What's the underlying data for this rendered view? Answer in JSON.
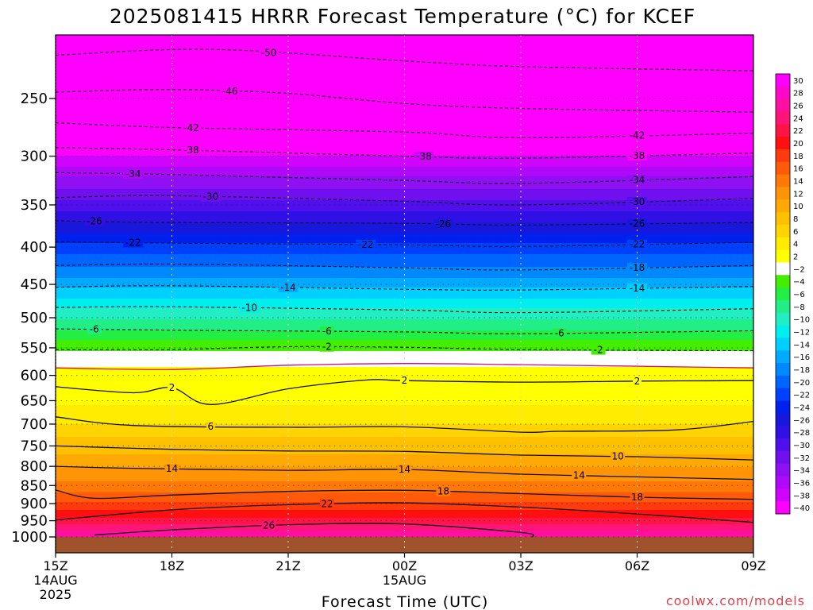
{
  "title": "2025081415 HRRR Forecast Temperature (°C) for KCEF",
  "credit": "coolwx.com/models",
  "chart_data": {
    "type": "heatmap",
    "title": "2025081415 HRRR Forecast Temperature (°C) for KCEF",
    "xlabel": "Forecast Time (UTC)",
    "ylabel": "",
    "y_scale": "log-pressure (inverted)",
    "ylim": [
      1000,
      200
    ],
    "xlim": [
      15,
      33
    ],
    "x_ticks": [
      {
        "x": 15,
        "label": "15Z",
        "sub": [
          "14AUG",
          "2025"
        ]
      },
      {
        "x": 18,
        "label": "18Z",
        "sub": []
      },
      {
        "x": 21,
        "label": "21Z",
        "sub": []
      },
      {
        "x": 24,
        "label": "00Z",
        "sub": [
          "15AUG"
        ]
      },
      {
        "x": 27,
        "label": "03Z",
        "sub": []
      },
      {
        "x": 30,
        "label": "06Z",
        "sub": []
      },
      {
        "x": 33,
        "label": "09Z",
        "sub": []
      }
    ],
    "y_ticks": [
      {
        "p": 250,
        "label": "250"
      },
      {
        "p": 300,
        "label": "300"
      },
      {
        "p": 350,
        "label": "350"
      },
      {
        "p": 400,
        "label": "400"
      },
      {
        "p": 450,
        "label": "450"
      },
      {
        "p": 500,
        "label": "500"
      },
      {
        "p": 550,
        "label": "550"
      },
      {
        "p": 600,
        "label": "600"
      },
      {
        "p": 650,
        "label": "650"
      },
      {
        "p": 700,
        "label": "700"
      },
      {
        "p": 750,
        "label": "750"
      },
      {
        "p": 800,
        "label": "800"
      },
      {
        "p": 850,
        "label": "850"
      },
      {
        "p": 900,
        "label": "900"
      },
      {
        "p": 950,
        "label": "950"
      },
      {
        "p": 1000,
        "label": "1000"
      }
    ],
    "grid": true,
    "colorbar": {
      "placement": "right",
      "levels": [
        {
          "label": "30",
          "color": "#ff00ff"
        },
        {
          "label": "28",
          "color": "#ff08cc"
        },
        {
          "label": "26",
          "color": "#ff10a0"
        },
        {
          "label": "24",
          "color": "#ff1478"
        },
        {
          "label": "22",
          "color": "#ff1448"
        },
        {
          "label": "20",
          "color": "#ff1010"
        },
        {
          "label": "18",
          "color": "#ff3a0c"
        },
        {
          "label": "16",
          "color": "#ff5a0a"
        },
        {
          "label": "14",
          "color": "#ff7808"
        },
        {
          "label": "12",
          "color": "#ff9406"
        },
        {
          "label": "10",
          "color": "#ffaa04"
        },
        {
          "label": "8",
          "color": "#ffc000"
        },
        {
          "label": "6",
          "color": "#ffd400"
        },
        {
          "label": "4",
          "color": "#ffec00"
        },
        {
          "label": "2",
          "color": "#ffff00"
        },
        {
          "label": "-2",
          "color": "#ffffff"
        },
        {
          "label": "-4",
          "color": "#44ee00"
        },
        {
          "label": "-6",
          "color": "#22ee44"
        },
        {
          "label": "-8",
          "color": "#22ee88"
        },
        {
          "label": "-10",
          "color": "#22eec4"
        },
        {
          "label": "-12",
          "color": "#00eeee"
        },
        {
          "label": "-14",
          "color": "#00d0ff"
        },
        {
          "label": "-16",
          "color": "#00aaff"
        },
        {
          "label": "-18",
          "color": "#0088ff"
        },
        {
          "label": "-20",
          "color": "#0064ff"
        },
        {
          "label": "-22",
          "color": "#0040ff"
        },
        {
          "label": "-24",
          "color": "#0020ee"
        },
        {
          "label": "-26",
          "color": "#1818dd"
        },
        {
          "label": "-28",
          "color": "#3010e4"
        },
        {
          "label": "-30",
          "color": "#5010ee"
        },
        {
          "label": "-32",
          "color": "#7010ee"
        },
        {
          "label": "-34",
          "color": "#9010f4"
        },
        {
          "label": "-36",
          "color": "#b008f8"
        },
        {
          "label": "-38",
          "color": "#d004fc"
        },
        {
          "label": "-40",
          "color": "#ff00ff"
        }
      ]
    },
    "profile": [
      {
        "p": 200,
        "t": -55
      },
      {
        "p": 220,
        "t": -51
      },
      {
        "p": 250,
        "t": -46
      },
      {
        "p": 275,
        "t": -42
      },
      {
        "p": 300,
        "t": -38
      },
      {
        "p": 320,
        "t": -34
      },
      {
        "p": 345,
        "t": -30
      },
      {
        "p": 370,
        "t": -26
      },
      {
        "p": 395,
        "t": -22
      },
      {
        "p": 425,
        "t": -18
      },
      {
        "p": 455,
        "t": -14
      },
      {
        "p": 485,
        "t": -10
      },
      {
        "p": 520,
        "t": -6
      },
      {
        "p": 555,
        "t": -2
      },
      {
        "p": 585,
        "t": 2
      },
      {
        "p": 600,
        "t": 2.5
      },
      {
        "p": 660,
        "t": 4
      },
      {
        "p": 700,
        "t": 6
      },
      {
        "p": 730,
        "t": 8
      },
      {
        "p": 770,
        "t": 10
      },
      {
        "p": 800,
        "t": 12
      },
      {
        "p": 840,
        "t": 14
      },
      {
        "p": 870,
        "t": 16
      },
      {
        "p": 895,
        "t": 18
      },
      {
        "p": 920,
        "t": 20
      },
      {
        "p": 940,
        "t": 22
      },
      {
        "p": 960,
        "t": 24
      },
      {
        "p": 980,
        "t": 26
      },
      {
        "p": 1000,
        "t": 28
      }
    ],
    "contours": [
      {
        "level": -50,
        "style": "dashed",
        "points": [
          [
            15,
            218
          ],
          [
            19,
            214
          ],
          [
            24,
            222
          ],
          [
            27,
            226
          ],
          [
            33,
            229
          ]
        ],
        "labels": [
          {
            "x": 20.5,
            "text": "-50"
          }
        ]
      },
      {
        "level": -46,
        "style": "dashed",
        "points": [
          [
            15,
            245
          ],
          [
            18,
            243
          ],
          [
            21,
            246
          ],
          [
            24,
            254
          ],
          [
            27,
            258
          ],
          [
            33,
            261
          ]
        ],
        "labels": [
          {
            "x": 19.5,
            "text": "-46"
          }
        ]
      },
      {
        "level": -42,
        "style": "dashed",
        "points": [
          [
            15,
            270
          ],
          [
            18,
            274
          ],
          [
            24,
            278
          ],
          [
            27,
            283
          ],
          [
            33,
            279
          ]
        ],
        "labels": [
          {
            "x": 18.5,
            "text": "-42"
          },
          {
            "x": 30,
            "text": "-42"
          }
        ]
      },
      {
        "level": -38,
        "style": "dashed",
        "points": [
          [
            15,
            292
          ],
          [
            18,
            294
          ],
          [
            24,
            300
          ],
          [
            27,
            302
          ],
          [
            33,
            297
          ]
        ],
        "labels": [
          {
            "x": 18.5,
            "text": "-38"
          },
          {
            "x": 24.5,
            "text": "-38"
          },
          {
            "x": 30,
            "text": "-38"
          }
        ]
      },
      {
        "level": -34,
        "style": "dashed",
        "points": [
          [
            15,
            316
          ],
          [
            18,
            318
          ],
          [
            24,
            324
          ],
          [
            27,
            327
          ],
          [
            33,
            320
          ]
        ],
        "labels": [
          {
            "x": 17,
            "text": "-34"
          },
          {
            "x": 30,
            "text": "-34"
          }
        ]
      },
      {
        "level": -30,
        "style": "dashed",
        "points": [
          [
            15,
            342
          ],
          [
            18,
            340
          ],
          [
            24,
            346
          ],
          [
            27,
            350
          ],
          [
            33,
            343
          ]
        ],
        "labels": [
          {
            "x": 19,
            "text": "-30"
          },
          {
            "x": 30,
            "text": "-30"
          }
        ]
      },
      {
        "level": -26,
        "style": "dashed",
        "points": [
          [
            15,
            368
          ],
          [
            18,
            370
          ],
          [
            24,
            371
          ],
          [
            27,
            373
          ],
          [
            33,
            370
          ]
        ],
        "labels": [
          {
            "x": 16,
            "text": "-26"
          },
          {
            "x": 25,
            "text": "-26"
          },
          {
            "x": 30,
            "text": "-26"
          }
        ]
      },
      {
        "level": -22,
        "style": "dashed",
        "points": [
          [
            15,
            393
          ],
          [
            18,
            395
          ],
          [
            24,
            397
          ],
          [
            27,
            399
          ],
          [
            33,
            394
          ]
        ],
        "labels": [
          {
            "x": 17,
            "text": "-22"
          },
          {
            "x": 23,
            "text": "-22"
          },
          {
            "x": 30,
            "text": "-22"
          }
        ]
      },
      {
        "level": -18,
        "style": "dashed",
        "points": [
          [
            15,
            424
          ],
          [
            18,
            422
          ],
          [
            24,
            427
          ],
          [
            27,
            430
          ],
          [
            33,
            424
          ]
        ],
        "labels": [
          {
            "x": 30,
            "text": "-18"
          }
        ]
      },
      {
        "level": -14,
        "style": "dashed",
        "points": [
          [
            15,
            454
          ],
          [
            18,
            452
          ],
          [
            24,
            457
          ],
          [
            27,
            458
          ],
          [
            33,
            453
          ]
        ],
        "labels": [
          {
            "x": 21,
            "text": "-14"
          },
          {
            "x": 30,
            "text": "-14"
          }
        ]
      },
      {
        "level": -10,
        "style": "dashed",
        "points": [
          [
            15,
            484
          ],
          [
            18,
            483
          ],
          [
            24,
            488
          ],
          [
            27,
            492
          ],
          [
            33,
            486
          ]
        ],
        "labels": [
          {
            "x": 20,
            "text": "-10"
          }
        ]
      },
      {
        "level": -6,
        "style": "dashed",
        "points": [
          [
            15,
            518
          ],
          [
            18,
            520
          ],
          [
            24,
            523
          ],
          [
            27,
            526
          ],
          [
            33,
            521
          ]
        ],
        "labels": [
          {
            "x": 16,
            "text": "-6"
          },
          {
            "x": 22,
            "text": "-6"
          },
          {
            "x": 28,
            "text": "-6"
          }
        ]
      },
      {
        "level": -2,
        "style": "dashed",
        "points": [
          [
            15,
            553
          ],
          [
            18,
            553
          ],
          [
            21,
            548
          ],
          [
            24,
            549
          ],
          [
            27,
            553
          ],
          [
            33,
            555
          ]
        ],
        "labels": [
          {
            "x": 22,
            "text": "-2"
          },
          {
            "x": 29,
            "text": "-2"
          }
        ]
      },
      {
        "level": 2,
        "style": "solid-magenta",
        "points": [
          [
            15,
            586
          ],
          [
            18,
            589
          ],
          [
            21,
            581
          ],
          [
            24,
            578
          ],
          [
            27,
            580
          ],
          [
            33,
            586
          ]
        ],
        "labels": []
      },
      {
        "level": 2,
        "style": "solid",
        "points": [
          [
            15,
            622
          ],
          [
            17,
            634
          ],
          [
            18,
            624
          ],
          [
            19,
            658
          ],
          [
            21,
            626
          ],
          [
            23,
            609
          ],
          [
            24,
            610
          ],
          [
            27,
            613
          ],
          [
            30,
            611
          ],
          [
            33,
            610
          ]
        ],
        "labels": [
          {
            "x": 18,
            "text": "2"
          },
          {
            "x": 24,
            "text": "2"
          },
          {
            "x": 30,
            "text": "2"
          }
        ]
      },
      {
        "level": 6,
        "style": "solid",
        "points": [
          [
            15,
            684
          ],
          [
            17,
            703
          ],
          [
            21,
            707
          ],
          [
            24,
            706
          ],
          [
            27,
            718
          ],
          [
            28,
            716
          ],
          [
            31,
            713
          ],
          [
            33,
            694
          ]
        ],
        "labels": [
          {
            "x": 19,
            "text": "6"
          }
        ]
      },
      {
        "level": 10,
        "style": "solid",
        "points": [
          [
            15,
            750
          ],
          [
            18,
            758
          ],
          [
            21,
            762
          ],
          [
            24,
            763
          ],
          [
            27,
            772
          ],
          [
            30,
            776
          ],
          [
            33,
            784
          ]
        ],
        "labels": [
          {
            "x": 29.5,
            "text": "10"
          }
        ]
      },
      {
        "level": 14,
        "style": "solid",
        "points": [
          [
            15,
            800
          ],
          [
            17,
            805
          ],
          [
            21,
            810
          ],
          [
            24,
            808
          ],
          [
            27,
            820
          ],
          [
            30,
            827
          ],
          [
            33,
            834
          ]
        ],
        "labels": [
          {
            "x": 18,
            "text": "14"
          },
          {
            "x": 24,
            "text": "14"
          },
          {
            "x": 28.5,
            "text": "14"
          }
        ]
      },
      {
        "level": 18,
        "style": "solid",
        "points": [
          [
            15,
            862
          ],
          [
            16,
            885
          ],
          [
            18,
            876
          ],
          [
            21,
            866
          ],
          [
            24,
            863
          ],
          [
            27,
            872
          ],
          [
            30,
            882
          ],
          [
            33,
            888
          ]
        ],
        "labels": [
          {
            "x": 25,
            "text": "18"
          },
          {
            "x": 30,
            "text": "18"
          }
        ]
      },
      {
        "level": 22,
        "style": "solid",
        "points": [
          [
            15,
            948
          ],
          [
            18,
            918
          ],
          [
            21,
            903
          ],
          [
            24,
            898
          ],
          [
            27,
            910
          ],
          [
            30,
            930
          ],
          [
            33,
            955
          ]
        ],
        "labels": [
          {
            "x": 22,
            "text": "22"
          }
        ]
      },
      {
        "level": 26,
        "style": "solid",
        "points": [
          [
            16,
            994
          ],
          [
            18,
            978
          ],
          [
            21,
            962
          ],
          [
            24,
            960
          ],
          [
            27,
            986
          ],
          [
            27.3,
            1000
          ]
        ],
        "labels": [
          {
            "x": 20.5,
            "text": "26"
          }
        ]
      }
    ],
    "ground": {
      "color": "#a0522d",
      "below_p": 1000
    }
  }
}
